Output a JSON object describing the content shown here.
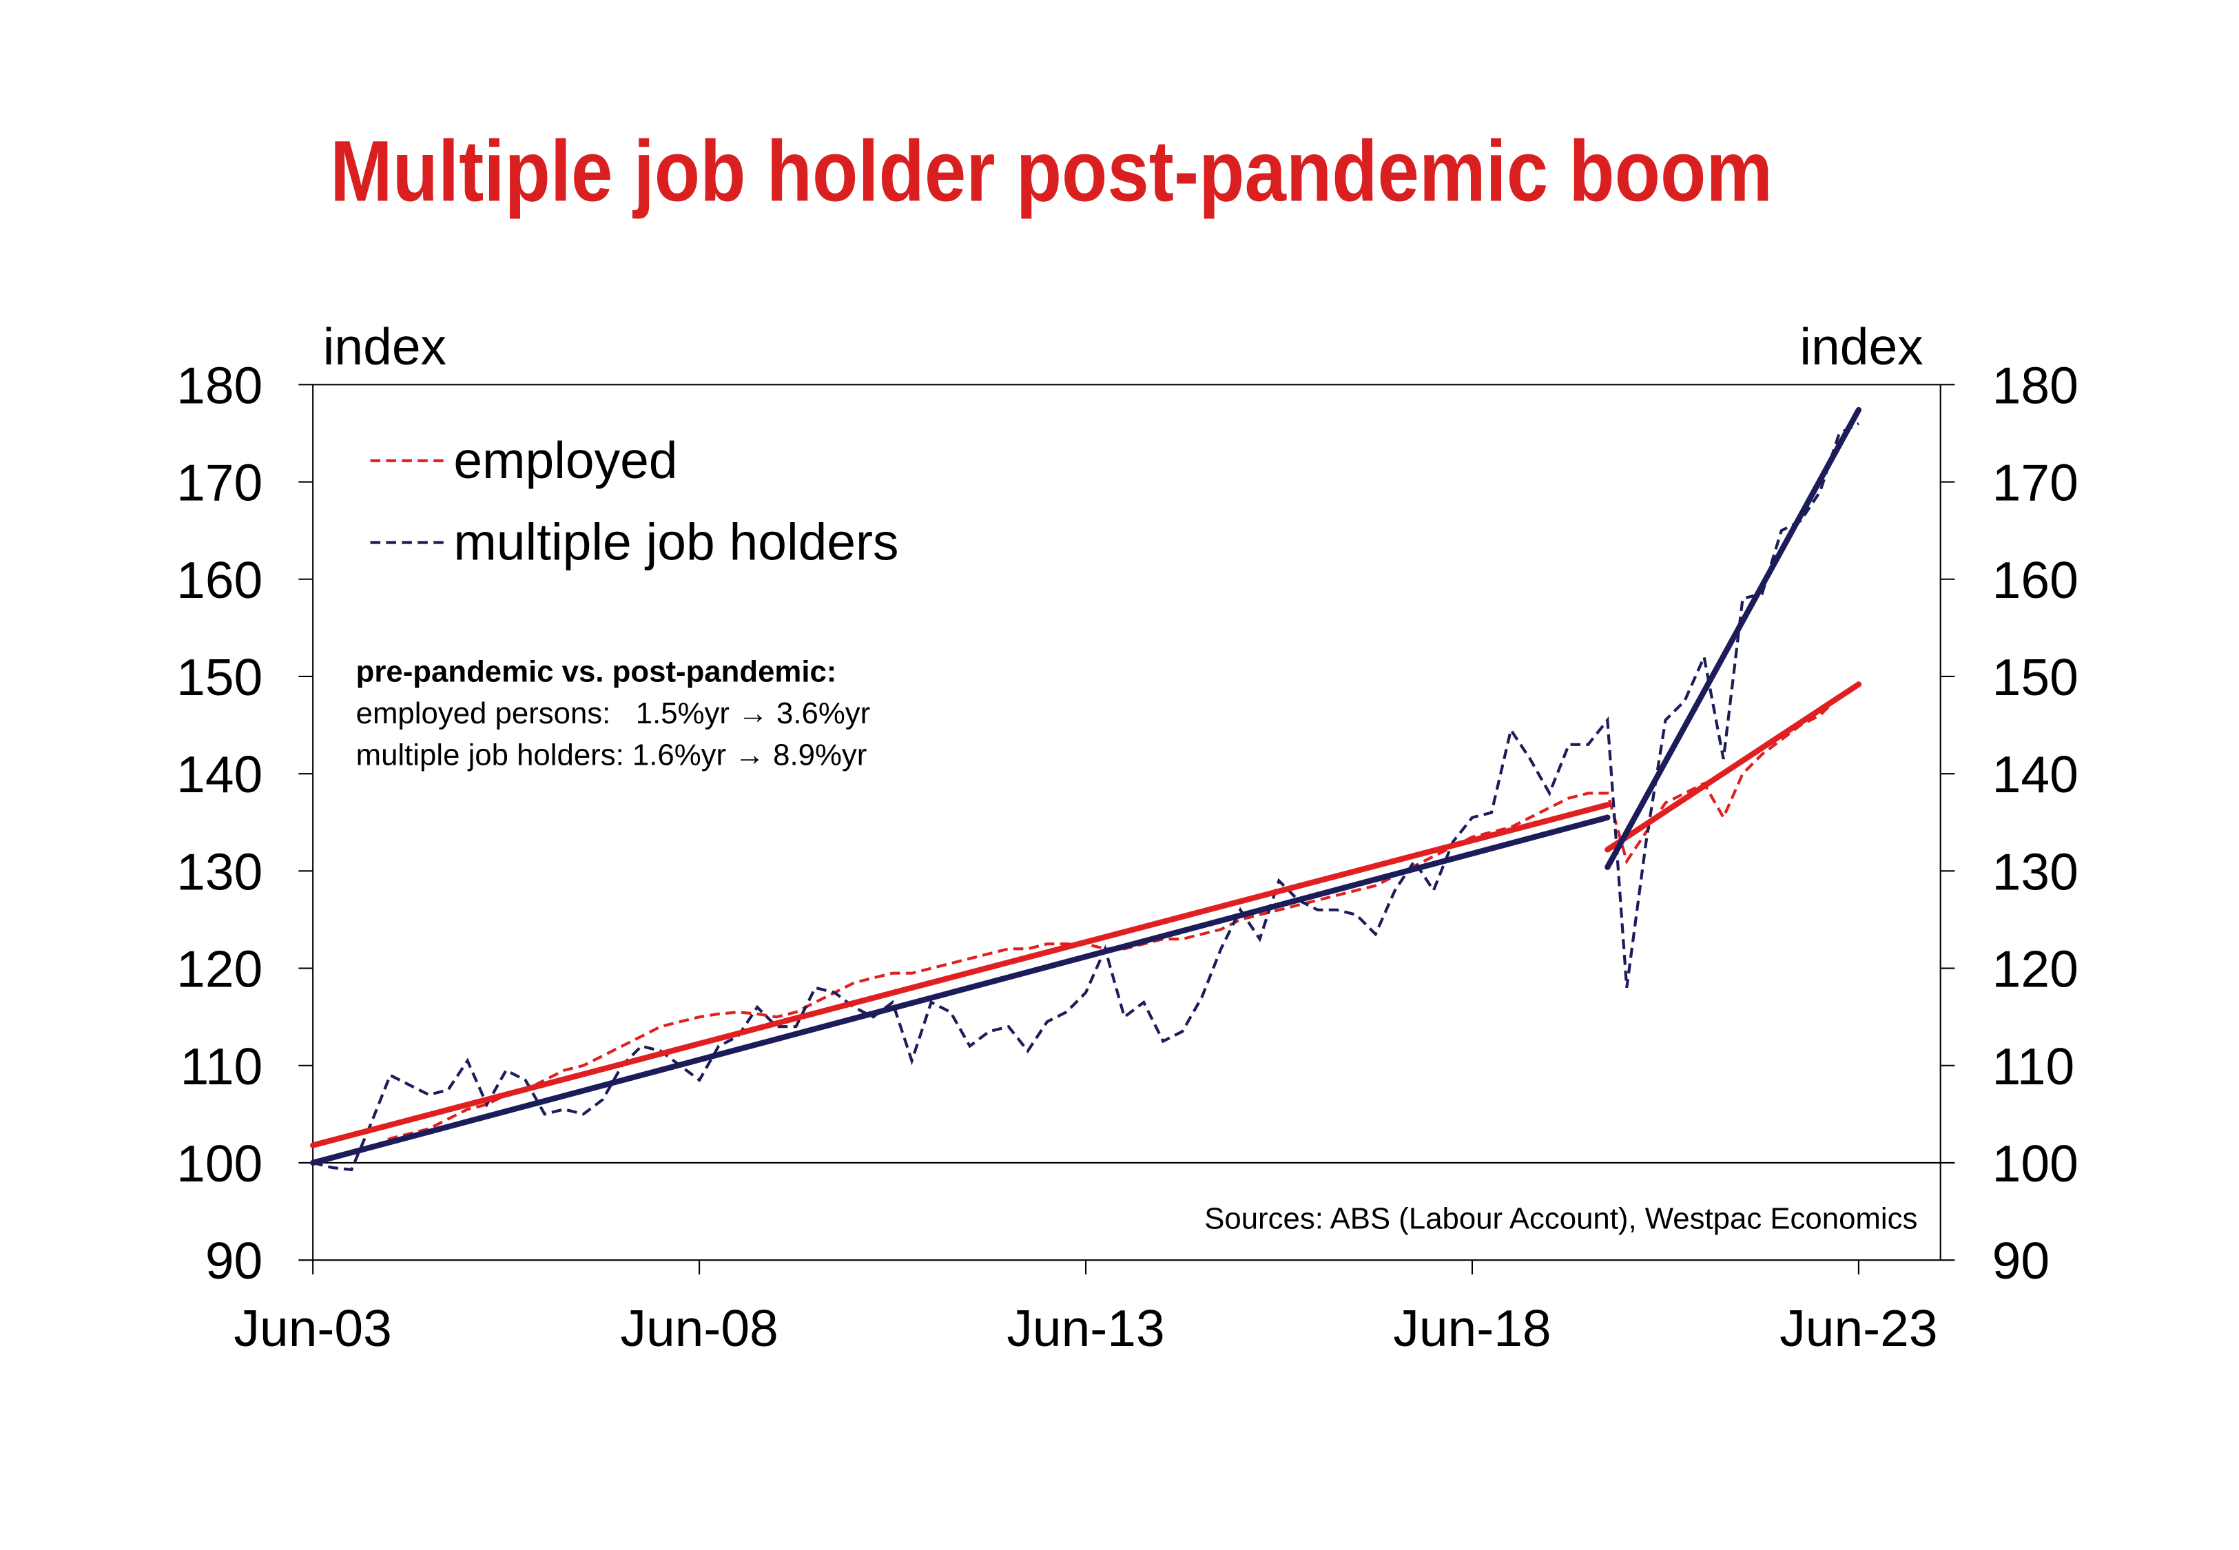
{
  "chart_data": {
    "type": "line",
    "title": "Multiple job holder post-pandemic boom",
    "y_label": "index",
    "y2_label": "index",
    "annotation_title": "pre-pandemic vs. post-pandemic:",
    "annotation_lines": [
      "employed persons:   1.5%yr → 3.6%yr",
      "multiple job holders: 1.6%yr → 8.9%yr"
    ],
    "source": "Sources: ABS (Labour Account), Westpac Economics",
    "categories": [
      "Jun-03",
      null,
      null,
      null,
      null,
      null,
      null,
      null,
      null,
      null,
      null,
      null,
      null,
      null,
      null,
      null,
      null,
      null,
      null,
      null,
      "Jun-08",
      null,
      null,
      null,
      null,
      null,
      null,
      null,
      null,
      null,
      null,
      null,
      null,
      null,
      null,
      null,
      null,
      null,
      null,
      null,
      "Jun-13",
      null,
      null,
      null,
      null,
      null,
      null,
      null,
      null,
      null,
      null,
      null,
      null,
      null,
      null,
      null,
      null,
      null,
      null,
      null,
      "Jun-18",
      null,
      null,
      null,
      null,
      null,
      null,
      null,
      null,
      null,
      null,
      null,
      null,
      null,
      null,
      null,
      null,
      null,
      null,
      null,
      "Jun-23"
    ],
    "series": [
      {
        "name": "employed",
        "color": "#e02020",
        "dashed": true,
        "values": [
          100,
          100.5,
          101,
          101.5,
          102.5,
          103,
          103.5,
          104.5,
          105.5,
          106,
          107,
          107.5,
          108.5,
          109.5,
          110,
          111,
          112,
          113,
          114,
          114.5,
          115,
          115.3,
          115.5,
          115.3,
          115,
          115.5,
          116.5,
          117.5,
          118.5,
          119,
          119.5,
          119.5,
          120,
          120.5,
          121,
          121.5,
          122,
          122,
          122.5,
          122.5,
          122.5,
          122,
          122,
          122.5,
          123,
          123,
          123.5,
          124,
          125,
          125.5,
          126,
          126.5,
          127,
          127.5,
          128,
          128.5,
          129.5,
          130.5,
          131.5,
          132.5,
          133.5,
          134,
          134.5,
          135.5,
          136.5,
          137.5,
          138,
          138,
          131,
          134,
          137,
          138,
          139,
          135.5,
          140,
          142,
          143.5,
          145,
          146,
          148,
          149
        ]
      },
      {
        "name": "multiple job holders",
        "color": "#1c1c5a",
        "dashed": true,
        "values": [
          100,
          99.5,
          99.3,
          104,
          109,
          108,
          107,
          107.5,
          110.5,
          106,
          109.5,
          108.5,
          105,
          105.5,
          105,
          106.5,
          110,
          112,
          111.5,
          110,
          108.5,
          112,
          113,
          116,
          114,
          114,
          118,
          117.5,
          116,
          115,
          116.5,
          110.5,
          116.5,
          115.5,
          112,
          113.5,
          114,
          111.5,
          114.5,
          115.5,
          117.5,
          122,
          115,
          116.5,
          112.5,
          113.5,
          117,
          122,
          126,
          123,
          129,
          127,
          126,
          126,
          125.5,
          123.5,
          128,
          131,
          128,
          133,
          135.5,
          136,
          144.5,
          141.5,
          138,
          143,
          143,
          145.5,
          118,
          133,
          145.5,
          147.5,
          152,
          141.5,
          158,
          158.5,
          165,
          166,
          169,
          175,
          176
        ]
      }
    ],
    "trend_lines": [
      {
        "color": "#e02020",
        "x": [
          0,
          67
        ],
        "values": [
          101.8,
          136.8
        ]
      },
      {
        "color": "#1c1c5a",
        "x": [
          0,
          67
        ],
        "values": [
          100,
          135.5
        ]
      },
      {
        "color": "#e02020",
        "x": [
          67,
          80
        ],
        "values": [
          132.2,
          149.2
        ]
      },
      {
        "color": "#1c1c5a",
        "x": [
          67,
          80
        ],
        "values": [
          130.4,
          177.4
        ]
      }
    ],
    "ylim": [
      90,
      180
    ],
    "yticks": [
      90,
      100,
      110,
      120,
      130,
      140,
      150,
      160,
      170,
      180
    ],
    "y2lim": [
      90,
      180
    ],
    "y2ticks": [
      90,
      100,
      110,
      120,
      130,
      140,
      150,
      160,
      170,
      180
    ],
    "baseline": 100
  }
}
